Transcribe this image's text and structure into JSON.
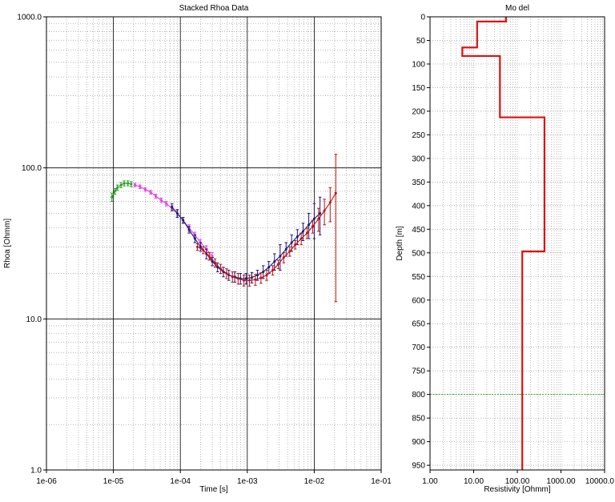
{
  "chart_data": [
    {
      "type": "line",
      "title": "Stacked Rhoa Data",
      "xlabel": "Time [s]",
      "ylabel": "Rhoa [Ohmm]",
      "x_scale": "log",
      "y_scale": "log",
      "xlim": [
        1e-06,
        0.1
      ],
      "ylim": [
        1,
        1000
      ],
      "grid": true,
      "x_ticks": [
        {
          "value": 1e-06,
          "label": "1e-06"
        },
        {
          "value": 1e-05,
          "label": "1e-05"
        },
        {
          "value": 0.0001,
          "label": "1e-04"
        },
        {
          "value": 0.001,
          "label": "1e-03"
        },
        {
          "value": 0.01,
          "label": "1e-02"
        },
        {
          "value": 0.1,
          "label": "1e-01"
        }
      ],
      "y_ticks": [
        {
          "value": 1,
          "label": "1.0"
        },
        {
          "value": 10,
          "label": "10.0"
        },
        {
          "value": 100,
          "label": "100.0"
        },
        {
          "value": 1000,
          "label": "1000.0"
        }
      ],
      "series": [
        {
          "color": "#22a022",
          "x": [
            9.5e-06,
            1.05e-05,
            1.15e-05,
            1.3e-05,
            1.45e-05,
            1.65e-05,
            1.85e-05
          ],
          "y": [
            64,
            70,
            74,
            77,
            79,
            79,
            78
          ],
          "err": [
            4,
            3,
            3,
            3,
            3,
            3,
            3
          ]
        },
        {
          "color": "#e040e0",
          "x": [
            2.1e-05,
            2.5e-05,
            3e-05,
            3.6e-05,
            4.3e-05,
            5.2e-05,
            6.2e-05,
            7.5e-05,
            9e-05,
            0.00011,
            0.000135,
            0.000165,
            0.0002,
            0.000245,
            0.0003
          ],
          "y": [
            77,
            75,
            72,
            69,
            65,
            61,
            58,
            54,
            50,
            45,
            40,
            36,
            32,
            29,
            26
          ],
          "err": [
            2,
            2,
            2,
            2,
            2,
            2,
            2,
            2,
            2,
            2,
            2,
            1.5,
            1.5,
            1.5,
            1.5
          ]
        },
        {
          "color": "#1a1a80",
          "x": [
            7.5e-05,
            9e-05,
            0.00011,
            0.000135,
            0.000165,
            0.0002,
            0.000245,
            0.0003,
            0.00036,
            0.00044,
            0.00053,
            0.00065,
            0.00079,
            0.00096,
            0.00117,
            0.00142,
            0.00173,
            0.0021,
            0.00255,
            0.0031,
            0.0038,
            0.0046,
            0.0056,
            0.0068,
            0.0083,
            0.01,
            0.0122
          ],
          "y": [
            55,
            50,
            45,
            39,
            34,
            30,
            27,
            24,
            22,
            20.5,
            19.5,
            19,
            18.5,
            18.5,
            18.8,
            19.5,
            20.5,
            22,
            24,
            26,
            29,
            32,
            35,
            38,
            42,
            46,
            50
          ],
          "err": [
            3,
            3,
            2,
            2,
            2,
            2,
            2,
            1.5,
            1.5,
            1.5,
            1.5,
            1.5,
            1.5,
            1.5,
            1.5,
            1.5,
            2,
            2,
            3,
            5,
            3,
            4,
            4,
            5,
            8,
            12,
            14
          ]
        },
        {
          "color": "#c01010",
          "x": [
            0.00018,
            0.00022,
            0.00027,
            0.00033,
            0.0004,
            0.00049,
            0.0006,
            0.00073,
            0.00089,
            0.00108,
            0.00132,
            0.0016,
            0.00195,
            0.0024,
            0.0029,
            0.0035,
            0.0043,
            0.0052,
            0.0064,
            0.0078,
            0.0095,
            0.0116,
            0.0142,
            0.0173,
            0.021
          ],
          "y": [
            30,
            28.5,
            26,
            23.5,
            21.5,
            20,
            19,
            18.5,
            18,
            18,
            18.2,
            18.7,
            19.5,
            21,
            23,
            25.5,
            28,
            31,
            34,
            37,
            41,
            46,
            52,
            59,
            68
          ],
          "err": [
            1.5,
            1.5,
            1.5,
            1.5,
            1.5,
            1.5,
            1.5,
            1.5,
            1.5,
            1.5,
            1.5,
            1.5,
            1.5,
            1.5,
            1.5,
            2,
            2,
            2,
            3,
            3,
            4,
            8,
            10,
            15,
            55
          ]
        }
      ]
    },
    {
      "type": "line",
      "title": "Mo del",
      "xlabel": "Resistivity [Ohmm]",
      "ylabel": "Depth [m]",
      "x_scale": "log",
      "y_scale": "linear",
      "y_inverted": true,
      "xlim": [
        1,
        10000
      ],
      "ylim": [
        0,
        960
      ],
      "grid": true,
      "x_ticks": [
        {
          "value": 1,
          "label": "1.00"
        },
        {
          "value": 10,
          "label": "10.00"
        },
        {
          "value": 100,
          "label": "100.00"
        },
        {
          "value": 1000,
          "label": "1000.00"
        },
        {
          "value": 10000,
          "label": "10000.0"
        }
      ],
      "y_ticks": [
        0,
        50,
        100,
        150,
        200,
        250,
        300,
        350,
        400,
        450,
        500,
        550,
        600,
        650,
        700,
        750,
        800,
        850,
        900,
        950
      ],
      "model_layers": [
        {
          "resistivity": 55,
          "top": 0,
          "bottom": 10
        },
        {
          "resistivity": 12,
          "top": 10,
          "bottom": 65
        },
        {
          "resistivity": 5.5,
          "top": 65,
          "bottom": 83
        },
        {
          "resistivity": 40,
          "top": 83,
          "bottom": 213
        },
        {
          "resistivity": 420,
          "top": 213,
          "bottom": 497
        },
        {
          "resistivity": 130,
          "top": 497,
          "bottom": 960
        }
      ],
      "model_color": "#dd1111",
      "reference_depth": 800,
      "reference_color": "#3a9a3a"
    }
  ]
}
